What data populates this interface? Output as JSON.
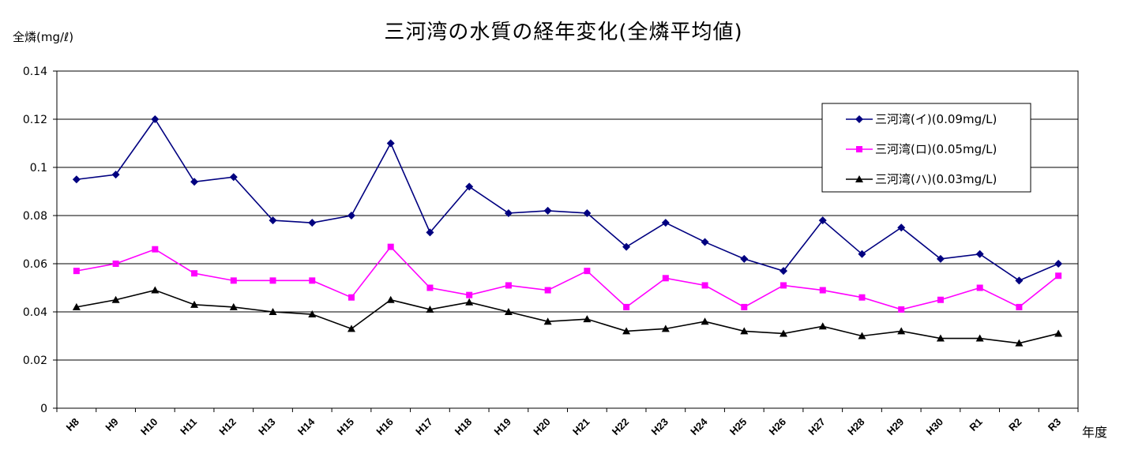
{
  "chart_data": {
    "type": "line",
    "title": "三河湾の水質の経年変化(全燐平均値)",
    "ylabel": "全燐(mg/ℓ)",
    "xlabel": "年度",
    "ylim": [
      0,
      0.14
    ],
    "yticks": [
      "0",
      "0.02",
      "0.04",
      "0.06",
      "0.08",
      "0.1",
      "0.12",
      "0.14"
    ],
    "grid": true,
    "legend_position": "top-right",
    "categories": [
      "H8",
      "H9",
      "H10",
      "H11",
      "H12",
      "H13",
      "H14",
      "H15",
      "H16",
      "H17",
      "H18",
      "H19",
      "H20",
      "H21",
      "H22",
      "H23",
      "H24",
      "H25",
      "H26",
      "H27",
      "H28",
      "H29",
      "H30",
      "R1",
      "R2",
      "R3"
    ],
    "series": [
      {
        "name": "三河湾(イ)(0.09mg/L)",
        "color": "#000080",
        "marker": "diamond",
        "values": [
          0.095,
          0.097,
          0.12,
          0.094,
          0.096,
          0.078,
          0.077,
          0.08,
          0.11,
          0.073,
          0.092,
          0.081,
          0.082,
          0.081,
          0.067,
          0.077,
          0.069,
          0.062,
          0.057,
          0.078,
          0.064,
          0.075,
          0.062,
          0.064,
          0.053,
          0.06
        ]
      },
      {
        "name": "三河湾(ロ)(0.05mg/L)",
        "color": "#ff00ff",
        "marker": "square",
        "values": [
          0.057,
          0.06,
          0.066,
          0.056,
          0.053,
          0.053,
          0.053,
          0.046,
          0.067,
          0.05,
          0.047,
          0.051,
          0.049,
          0.057,
          0.042,
          0.054,
          0.051,
          0.042,
          0.051,
          0.049,
          0.046,
          0.041,
          0.045,
          0.05,
          0.042,
          0.055
        ]
      },
      {
        "name": "三河湾(ハ)(0.03mg/L)",
        "color": "#000000",
        "marker": "triangle",
        "values": [
          0.042,
          0.045,
          0.049,
          0.043,
          0.042,
          0.04,
          0.039,
          0.033,
          0.045,
          0.041,
          0.044,
          0.04,
          0.036,
          0.037,
          0.032,
          0.033,
          0.036,
          0.032,
          0.031,
          0.034,
          0.03,
          0.032,
          0.029,
          0.029,
          0.027,
          0.031
        ]
      }
    ]
  }
}
